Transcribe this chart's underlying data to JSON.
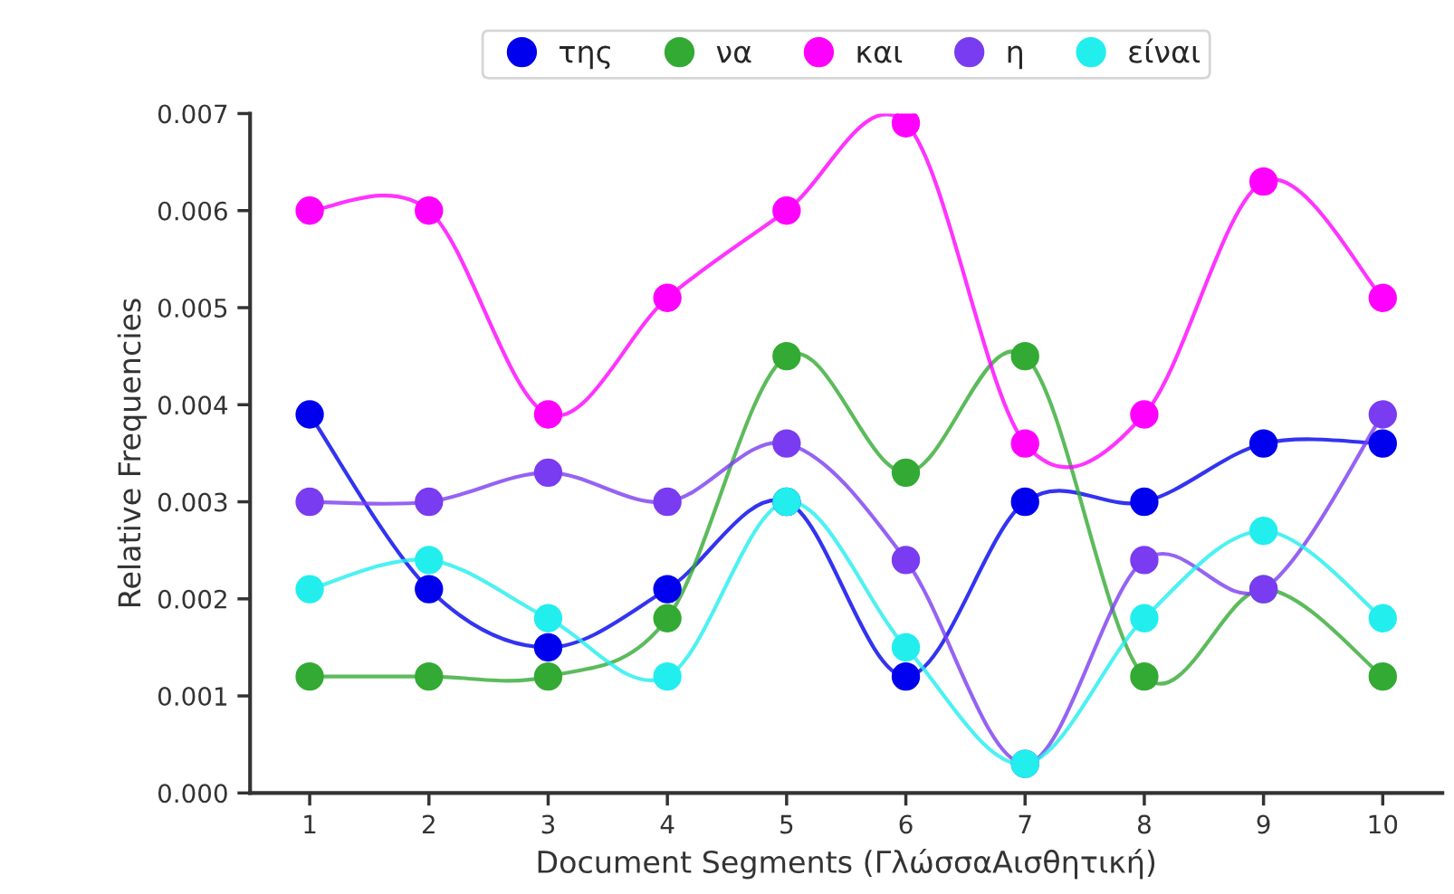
{
  "chart_data": {
    "type": "line",
    "xlabel": "Document Segments (ΓλώσσαΑισθητική)",
    "ylabel": "Relative Frequencies",
    "categories": [
      "1",
      "2",
      "3",
      "4",
      "5",
      "6",
      "7",
      "8",
      "9",
      "10"
    ],
    "series": [
      {
        "name": "της",
        "color": "#0000ee",
        "values": [
          0.0039,
          0.0021,
          0.0015,
          0.0021,
          0.003,
          0.0012,
          0.003,
          0.003,
          0.0036,
          0.0036
        ]
      },
      {
        "name": "να",
        "color": "#33aa33",
        "values": [
          0.0012,
          0.0012,
          0.0012,
          0.0018,
          0.0045,
          0.0033,
          0.0045,
          0.0012,
          0.0021,
          0.0012
        ]
      },
      {
        "name": "και",
        "color": "#ff00ff",
        "values": [
          0.006,
          0.006,
          0.0039,
          0.0051,
          0.006,
          0.0069,
          0.0036,
          0.0039,
          0.0063,
          0.0051
        ]
      },
      {
        "name": "η",
        "color": "#7a3cf0",
        "values": [
          0.003,
          0.003,
          0.0033,
          0.003,
          0.0036,
          0.0024,
          0.0003,
          0.0024,
          0.0021,
          0.0039
        ]
      },
      {
        "name": "είναι",
        "color": "#22eeee",
        "values": [
          0.0021,
          0.0024,
          0.0018,
          0.0012,
          0.003,
          0.0015,
          0.0003,
          0.0018,
          0.0027,
          0.0018
        ]
      }
    ],
    "ylim": [
      0,
      0.007
    ],
    "yticks": [
      {
        "value": 0,
        "label": "0.000"
      },
      0.001,
      0.002,
      0.003,
      0.004,
      0.005,
      0.006,
      0.007
    ],
    "grid": false,
    "legend": "top",
    "marker": "circle",
    "line_style": "solid"
  }
}
